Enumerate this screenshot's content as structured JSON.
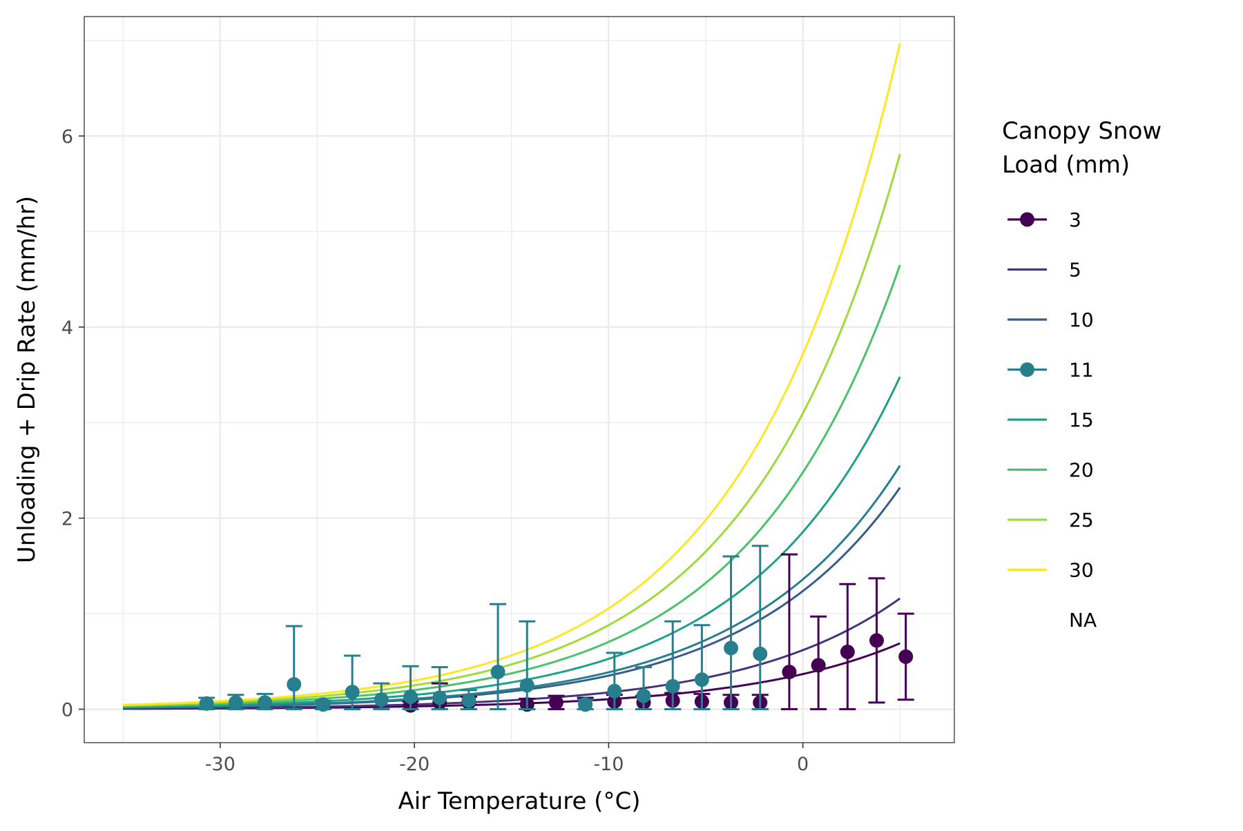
{
  "chart_data": {
    "type": "line",
    "xlabel": "Air Temperature (°C)",
    "ylabel": "Unloading + Drip Rate (mm/hr)",
    "xlim": [
      -37,
      7.8
    ],
    "ylim": [
      -0.35,
      7.25
    ],
    "x_ticks": [
      -30,
      -20,
      -10,
      0
    ],
    "x_tick_labels": [
      "-30",
      "-20",
      "-10",
      "0"
    ],
    "y_ticks": [
      0,
      2,
      4,
      6
    ],
    "y_tick_labels": [
      "0",
      "2",
      "4",
      "6"
    ],
    "grid": true,
    "legend": {
      "title_lines": [
        "Canopy Snow",
        "Load (mm)"
      ],
      "placement": "right",
      "entries": [
        {
          "label": "3",
          "color": "#440154",
          "kind": "point-line"
        },
        {
          "label": "5",
          "color": "#46337e",
          "kind": "line"
        },
        {
          "label": "10",
          "color": "#365c8d",
          "kind": "line"
        },
        {
          "label": "11",
          "color": "#277f8e",
          "kind": "point-line"
        },
        {
          "label": "15",
          "color": "#1fa187",
          "kind": "line"
        },
        {
          "label": "20",
          "color": "#4ac16d",
          "kind": "line"
        },
        {
          "label": "25",
          "color": "#a0da39",
          "kind": "line"
        },
        {
          "label": "30",
          "color": "#fde725",
          "kind": "line"
        },
        {
          "label": "NA",
          "color": "#ffffff",
          "kind": "none"
        }
      ]
    },
    "curves": {
      "x_start": -35,
      "x_end": 5,
      "series": [
        {
          "name": "3",
          "color": "#440154",
          "y_end": 0.69
        },
        {
          "name": "5",
          "color": "#46337e",
          "y_end": 1.16
        },
        {
          "name": "10",
          "color": "#365c8d",
          "y_end": 2.32
        },
        {
          "name": "11",
          "color": "#277f8e",
          "y_end": 2.55
        },
        {
          "name": "15",
          "color": "#1fa187",
          "y_end": 3.48
        },
        {
          "name": "20",
          "color": "#4ac16d",
          "y_end": 4.65
        },
        {
          "name": "25",
          "color": "#a0da39",
          "y_end": 5.81
        },
        {
          "name": "30",
          "color": "#fde725",
          "y_end": 6.97
        }
      ]
    },
    "observed": [
      {
        "name": "3",
        "color": "#440154",
        "points": [
          {
            "x": -20.2,
            "y": 0.04,
            "lo": 0.0,
            "hi": 0.08
          },
          {
            "x": -18.7,
            "y": 0.07,
            "lo": 0.0,
            "hi": 0.27
          },
          {
            "x": -17.2,
            "y": 0.07,
            "lo": 0.0,
            "hi": 0.13
          },
          {
            "x": -14.2,
            "y": 0.05,
            "lo": 0.0,
            "hi": 0.11
          },
          {
            "x": -12.7,
            "y": 0.07,
            "lo": 0.0,
            "hi": 0.14
          },
          {
            "x": -11.2,
            "y": 0.05,
            "lo": 0.0,
            "hi": 0.12
          },
          {
            "x": -9.7,
            "y": 0.08,
            "lo": 0.0,
            "hi": 0.15
          },
          {
            "x": -8.2,
            "y": 0.07,
            "lo": 0.0,
            "hi": 0.14
          },
          {
            "x": -6.7,
            "y": 0.09,
            "lo": 0.0,
            "hi": 0.17
          },
          {
            "x": -5.2,
            "y": 0.08,
            "lo": 0.0,
            "hi": 0.16
          },
          {
            "x": -3.7,
            "y": 0.07,
            "lo": 0.0,
            "hi": 0.15
          },
          {
            "x": -2.2,
            "y": 0.07,
            "lo": 0.0,
            "hi": 0.15
          },
          {
            "x": -0.7,
            "y": 0.39,
            "lo": 0.0,
            "hi": 1.62
          },
          {
            "x": 0.8,
            "y": 0.46,
            "lo": 0.0,
            "hi": 0.97
          },
          {
            "x": 2.3,
            "y": 0.6,
            "lo": 0.0,
            "hi": 1.31
          },
          {
            "x": 3.8,
            "y": 0.72,
            "lo": 0.07,
            "hi": 1.37
          },
          {
            "x": 5.3,
            "y": 0.55,
            "lo": 0.1,
            "hi": 1.0
          }
        ]
      },
      {
        "name": "11",
        "color": "#277f8e",
        "points": [
          {
            "x": -30.7,
            "y": 0.06,
            "lo": 0.0,
            "hi": 0.12
          },
          {
            "x": -29.2,
            "y": 0.07,
            "lo": 0.0,
            "hi": 0.15
          },
          {
            "x": -27.7,
            "y": 0.07,
            "lo": 0.0,
            "hi": 0.16
          },
          {
            "x": -26.2,
            "y": 0.26,
            "lo": 0.0,
            "hi": 0.87
          },
          {
            "x": -24.7,
            "y": 0.05,
            "lo": 0.0,
            "hi": 0.09
          },
          {
            "x": -23.2,
            "y": 0.18,
            "lo": 0.0,
            "hi": 0.56
          },
          {
            "x": -21.7,
            "y": 0.1,
            "lo": 0.0,
            "hi": 0.27
          },
          {
            "x": -20.2,
            "y": 0.13,
            "lo": 0.0,
            "hi": 0.45
          },
          {
            "x": -18.7,
            "y": 0.12,
            "lo": 0.0,
            "hi": 0.44
          },
          {
            "x": -17.2,
            "y": 0.09,
            "lo": 0.0,
            "hi": 0.2
          },
          {
            "x": -15.7,
            "y": 0.39,
            "lo": 0.0,
            "hi": 1.1
          },
          {
            "x": -14.2,
            "y": 0.25,
            "lo": 0.0,
            "hi": 0.92
          },
          {
            "x": -11.2,
            "y": 0.05,
            "lo": 0.0,
            "hi": 0.1
          },
          {
            "x": -9.7,
            "y": 0.19,
            "lo": 0.0,
            "hi": 0.59
          },
          {
            "x": -8.2,
            "y": 0.14,
            "lo": 0.0,
            "hi": 0.44
          },
          {
            "x": -6.7,
            "y": 0.24,
            "lo": 0.0,
            "hi": 0.92
          },
          {
            "x": -5.2,
            "y": 0.31,
            "lo": 0.0,
            "hi": 0.88
          },
          {
            "x": -3.7,
            "y": 0.64,
            "lo": 0.0,
            "hi": 1.6
          },
          {
            "x": -2.2,
            "y": 0.58,
            "lo": 0.0,
            "hi": 1.71
          }
        ]
      }
    ]
  }
}
